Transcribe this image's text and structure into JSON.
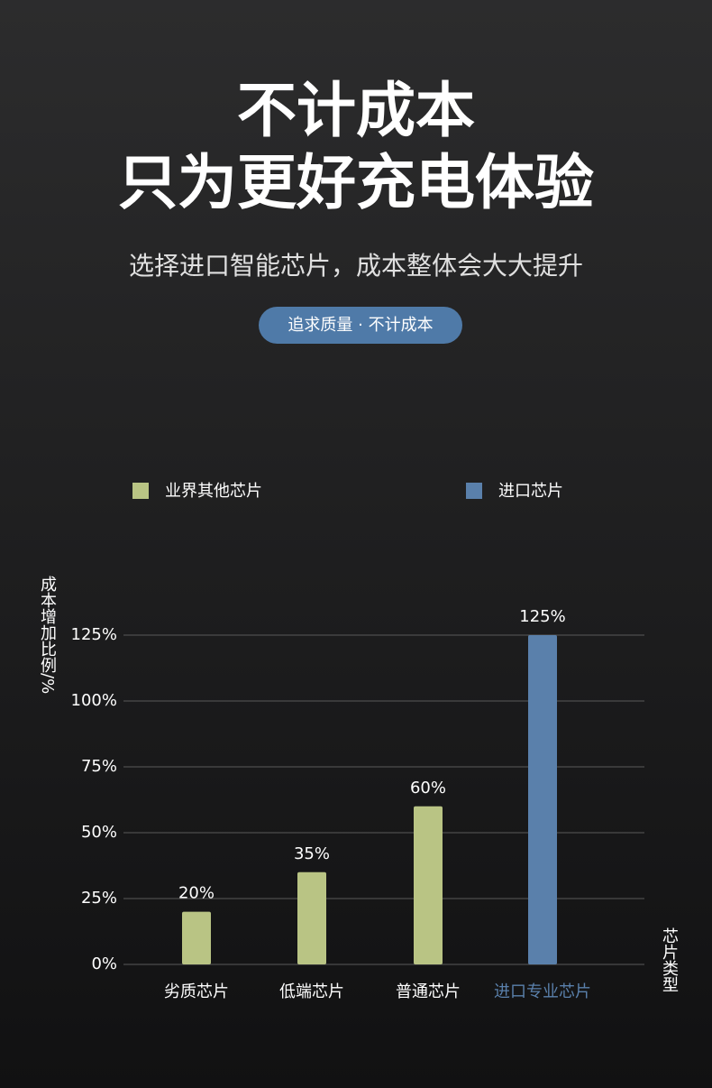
{
  "header": {
    "title_lines": [
      "不计成本",
      "只为更好充电体验"
    ],
    "subtitle": "选择进口智能芯片，成本整体会大大提升",
    "badge": "追求质量 · 不计成本"
  },
  "chart_data": {
    "type": "bar",
    "y_label": "成本增加比例/%",
    "x_label": "芯片类型",
    "categories": [
      "劣质芯片",
      "低端芯片",
      "普通芯片",
      "进口专业芯片"
    ],
    "series": [
      {
        "name": "业界其他芯片",
        "color": "#b9c484",
        "values": [
          20,
          35,
          60,
          null
        ],
        "value_labels": [
          "20%",
          "35%",
          "60%",
          null
        ]
      },
      {
        "name": "进口芯片",
        "color": "#5a80ab",
        "values": [
          null,
          null,
          null,
          125
        ],
        "value_labels": [
          null,
          null,
          null,
          "125%"
        ]
      }
    ],
    "ylim": [
      0,
      125
    ],
    "yticks": [
      {
        "value": 0,
        "label": "0%"
      },
      {
        "value": 25,
        "label": "25%"
      },
      {
        "value": 50,
        "label": "50%"
      },
      {
        "value": 75,
        "label": "75%"
      },
      {
        "value": 100,
        "label": "100%"
      },
      {
        "value": 125,
        "label": "125%"
      }
    ],
    "grid": true
  }
}
